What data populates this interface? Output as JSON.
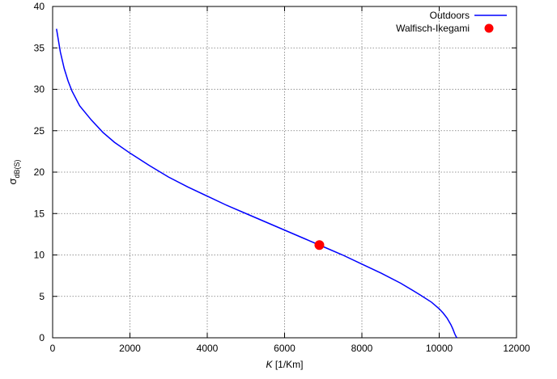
{
  "chart_data": {
    "type": "line",
    "title": "",
    "xlabel_var": "K",
    "xlabel_unit": " [1/Km]",
    "ylabel_main": "σ",
    "ylabel_sub": "dB(S)",
    "xlim": [
      0,
      12000
    ],
    "ylim": [
      0,
      40
    ],
    "xticks": [
      0,
      2000,
      4000,
      6000,
      8000,
      10000,
      12000
    ],
    "yticks": [
      0,
      5,
      10,
      15,
      20,
      25,
      30,
      35,
      40
    ],
    "grid": true,
    "legend_position": "top-right",
    "series": [
      {
        "name": "Outdoors",
        "type": "line",
        "color": "#0000ff",
        "x": [
          100,
          200,
          300,
          400,
          500,
          700,
          1000,
          1300,
          1600,
          2000,
          2500,
          3000,
          3500,
          4000,
          4500,
          5000,
          5500,
          6000,
          6500,
          7000,
          7500,
          8000,
          8500,
          9000,
          9500,
          9800,
          10000,
          10100,
          10200,
          10300,
          10350,
          10400,
          10430,
          10450,
          10460
        ],
        "y": [
          37.3,
          34.5,
          32.5,
          31.0,
          29.8,
          28.0,
          26.3,
          24.8,
          23.6,
          22.3,
          20.8,
          19.4,
          18.2,
          17.1,
          16.0,
          15.0,
          14.0,
          13.0,
          12.0,
          11.0,
          10.0,
          8.9,
          7.8,
          6.6,
          5.2,
          4.3,
          3.5,
          3.0,
          2.4,
          1.6,
          1.1,
          0.5,
          0.2,
          0.05,
          0
        ]
      },
      {
        "name": "Walfisch-Ikegami",
        "type": "scatter",
        "color": "#ff0000",
        "x": [
          6900
        ],
        "y": [
          11.2
        ]
      }
    ]
  }
}
